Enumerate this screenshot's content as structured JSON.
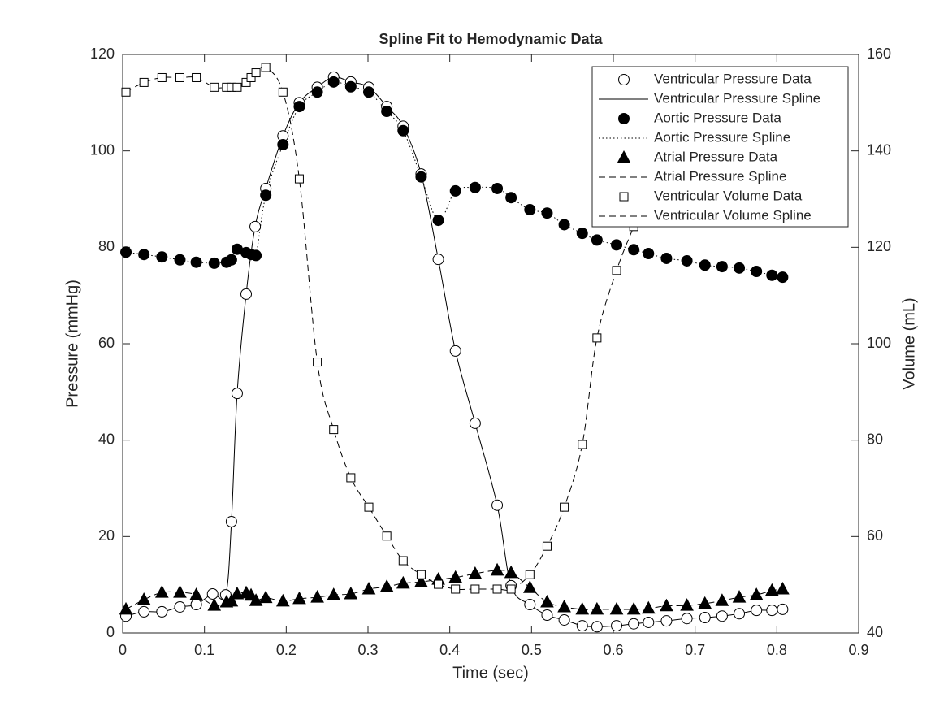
{
  "chart_data": {
    "type": "line",
    "title": "Spline Fit to Hemodynamic Data",
    "x_label": "Time (sec)",
    "y_label": "Pressure (mmHg)",
    "y2_label": "Volume (mL)",
    "xlim": [
      0,
      0.9
    ],
    "xticks": [
      0,
      0.1,
      0.2,
      0.3,
      0.4,
      0.5,
      0.6,
      0.7,
      0.8,
      0.9
    ],
    "ylim": [
      0,
      120
    ],
    "yticks": [
      0,
      20,
      40,
      60,
      80,
      100,
      120
    ],
    "y2lim": [
      40,
      160
    ],
    "y2ticks": [
      40,
      60,
      80,
      100,
      120,
      140,
      160
    ],
    "legend": "northeast",
    "grid": false,
    "series": [
      {
        "name": "Ventricular Pressure Data",
        "marker": "circle-open",
        "line": "none",
        "color": "#000000",
        "axis": "y",
        "x": [
          0.004,
          0.026,
          0.048,
          0.07,
          0.09,
          0.11,
          0.126,
          0.133,
          0.14,
          0.151,
          0.162,
          0.175,
          0.196,
          0.216,
          0.238,
          0.258,
          0.279,
          0.301,
          0.323,
          0.343,
          0.365,
          0.386,
          0.407,
          0.431,
          0.458,
          0.475,
          0.498,
          0.519,
          0.54,
          0.562,
          0.58,
          0.604,
          0.625,
          0.643,
          0.665,
          0.69,
          0.712,
          0.733,
          0.754,
          0.775,
          0.794,
          0.807
        ],
        "values": [
          3.5,
          4.4,
          4.4,
          5.4,
          5.9,
          8.1,
          7.9,
          23.1,
          49.7,
          70.3,
          84.3,
          92.2,
          103.1,
          110,
          113.2,
          115.3,
          114.3,
          113.2,
          109.2,
          105.1,
          95.2,
          77.5,
          58.5,
          43.5,
          26.5,
          9.8,
          5.9,
          3.7,
          2.7,
          1.5,
          1.3,
          1.5,
          1.9,
          2.2,
          2.5,
          3.0,
          3.2,
          3.5,
          4.0,
          4.7,
          4.7,
          4.9
        ]
      },
      {
        "name": "Ventricular Pressure Spline",
        "marker": "none",
        "line": "solid",
        "color": "#000000",
        "axis": "y",
        "x": [
          0.004,
          0.026,
          0.048,
          0.07,
          0.09,
          0.11,
          0.126,
          0.133,
          0.14,
          0.151,
          0.162,
          0.175,
          0.196,
          0.216,
          0.238,
          0.258,
          0.279,
          0.301,
          0.323,
          0.343,
          0.365,
          0.386,
          0.407,
          0.431,
          0.458,
          0.475,
          0.498,
          0.519,
          0.54,
          0.562,
          0.58,
          0.604,
          0.625,
          0.643,
          0.665,
          0.69,
          0.712,
          0.733,
          0.754,
          0.775,
          0.794,
          0.807
        ],
        "values": [
          3.5,
          4.4,
          4.4,
          5.4,
          5.9,
          8.1,
          7.9,
          23.1,
          49.7,
          70.3,
          84.3,
          92.2,
          103.1,
          110,
          113.2,
          115.3,
          114.3,
          113.2,
          109.2,
          105.1,
          95.2,
          77.5,
          58.5,
          43.5,
          26.5,
          9.8,
          5.9,
          3.7,
          2.7,
          1.5,
          1.3,
          1.5,
          1.9,
          2.2,
          2.5,
          3.0,
          3.2,
          3.5,
          4.0,
          4.7,
          4.7,
          4.9
        ]
      },
      {
        "name": "Aortic Pressure Data",
        "marker": "circle-filled",
        "line": "none",
        "color": "#000000",
        "axis": "y",
        "x": [
          0.004,
          0.026,
          0.048,
          0.07,
          0.09,
          0.112,
          0.127,
          0.133,
          0.14,
          0.151,
          0.157,
          0.163,
          0.175,
          0.196,
          0.216,
          0.238,
          0.258,
          0.279,
          0.301,
          0.323,
          0.343,
          0.365,
          0.386,
          0.407,
          0.431,
          0.458,
          0.475,
          0.498,
          0.519,
          0.54,
          0.562,
          0.58,
          0.604,
          0.625,
          0.643,
          0.665,
          0.69,
          0.712,
          0.733,
          0.754,
          0.775,
          0.794,
          0.807
        ],
        "values": [
          79,
          78.5,
          78,
          77.4,
          76.9,
          76.7,
          76.9,
          77.4,
          79.6,
          78.9,
          78.5,
          78.3,
          90.8,
          101.3,
          109.2,
          112.2,
          114.3,
          113.3,
          112.2,
          108.2,
          104.2,
          94.6,
          85.6,
          91.7,
          92.4,
          92.2,
          90.3,
          87.8,
          87.1,
          84.7,
          82.9,
          81.5,
          80.5,
          79.5,
          78.7,
          77.7,
          77.2,
          76.3,
          76.0,
          75.7,
          75.0,
          74.2,
          73.8
        ]
      },
      {
        "name": "Aortic Pressure Spline",
        "marker": "none",
        "line": "dotted",
        "color": "#000000",
        "axis": "y",
        "x": [
          0.004,
          0.026,
          0.048,
          0.07,
          0.09,
          0.112,
          0.127,
          0.133,
          0.14,
          0.151,
          0.157,
          0.163,
          0.175,
          0.196,
          0.216,
          0.238,
          0.258,
          0.279,
          0.301,
          0.323,
          0.343,
          0.365,
          0.386,
          0.407,
          0.431,
          0.458,
          0.475,
          0.498,
          0.519,
          0.54,
          0.562,
          0.58,
          0.604,
          0.625,
          0.643,
          0.665,
          0.69,
          0.712,
          0.733,
          0.754,
          0.775,
          0.794,
          0.807
        ],
        "values": [
          79,
          78.5,
          78,
          77.4,
          76.9,
          76.7,
          76.9,
          77.4,
          79.6,
          78.9,
          78.5,
          78.3,
          90.8,
          101.3,
          109.2,
          112.2,
          114.3,
          113.3,
          112.2,
          108.2,
          104.2,
          94.6,
          85.6,
          91.7,
          92.4,
          92.2,
          90.3,
          87.8,
          87.1,
          84.7,
          82.9,
          81.5,
          80.5,
          79.5,
          78.7,
          77.7,
          77.2,
          76.3,
          76.0,
          75.7,
          75.0,
          74.2,
          73.8
        ]
      },
      {
        "name": "Atrial Pressure Data",
        "marker": "triangle",
        "line": "none",
        "color": "#000000",
        "axis": "y",
        "x": [
          0.004,
          0.026,
          0.048,
          0.07,
          0.09,
          0.112,
          0.127,
          0.133,
          0.14,
          0.151,
          0.157,
          0.163,
          0.175,
          0.196,
          0.216,
          0.238,
          0.258,
          0.279,
          0.301,
          0.323,
          0.343,
          0.365,
          0.386,
          0.407,
          0.431,
          0.458,
          0.475,
          0.498,
          0.519,
          0.54,
          0.562,
          0.58,
          0.604,
          0.625,
          0.643,
          0.665,
          0.69,
          0.712,
          0.733,
          0.754,
          0.775,
          0.794,
          0.807
        ],
        "values": [
          4.9,
          6.9,
          8.4,
          8.4,
          7.9,
          5.7,
          6.4,
          6.6,
          8.1,
          8.3,
          7.8,
          6.7,
          7.3,
          6.6,
          7.1,
          7.4,
          7.9,
          8.1,
          9.1,
          9.6,
          10.3,
          10.6,
          11.1,
          11.5,
          12.3,
          13.0,
          12.5,
          9.4,
          6.4,
          5.4,
          4.9,
          4.9,
          4.9,
          4.9,
          5.1,
          5.6,
          5.7,
          6.1,
          6.7,
          7.4,
          7.9,
          8.8,
          9.1
        ]
      },
      {
        "name": "Atrial Pressure Spline",
        "marker": "none",
        "line": "dashed",
        "color": "#000000",
        "axis": "y",
        "x": [
          0.004,
          0.026,
          0.048,
          0.07,
          0.09,
          0.112,
          0.127,
          0.133,
          0.14,
          0.151,
          0.157,
          0.163,
          0.175,
          0.196,
          0.216,
          0.238,
          0.258,
          0.279,
          0.301,
          0.323,
          0.343,
          0.365,
          0.386,
          0.407,
          0.431,
          0.458,
          0.475,
          0.498,
          0.519,
          0.54,
          0.562,
          0.58,
          0.604,
          0.625,
          0.643,
          0.665,
          0.69,
          0.712,
          0.733,
          0.754,
          0.775,
          0.794,
          0.807
        ],
        "values": [
          4.9,
          6.9,
          8.4,
          8.4,
          7.9,
          5.7,
          6.4,
          6.6,
          8.1,
          8.3,
          7.8,
          6.7,
          7.3,
          6.6,
          7.1,
          7.4,
          7.9,
          8.1,
          9.1,
          9.6,
          10.3,
          10.6,
          11.1,
          11.5,
          12.3,
          13.0,
          12.5,
          9.4,
          6.4,
          5.4,
          4.9,
          4.9,
          4.9,
          4.9,
          5.1,
          5.6,
          5.7,
          6.1,
          6.7,
          7.4,
          7.9,
          8.8,
          9.1
        ]
      },
      {
        "name": "Ventricular Volume Data",
        "marker": "square",
        "line": "none",
        "color": "#000000",
        "axis": "y2",
        "x": [
          0.004,
          0.026,
          0.048,
          0.07,
          0.09,
          0.112,
          0.127,
          0.133,
          0.14,
          0.151,
          0.157,
          0.163,
          0.175,
          0.196,
          0.216,
          0.238,
          0.258,
          0.279,
          0.301,
          0.323,
          0.343,
          0.365,
          0.386,
          0.407,
          0.431,
          0.458,
          0.475,
          0.498,
          0.519,
          0.54,
          0.562,
          0.58,
          0.604,
          0.625
        ],
        "values": [
          152.2,
          154.2,
          155.2,
          155.2,
          155.2,
          153.2,
          153.2,
          153.2,
          153.2,
          154.2,
          155.2,
          156.2,
          157.3,
          152.2,
          134.2,
          96.2,
          82.2,
          72.2,
          66.1,
          60.1,
          55.0,
          52.1,
          50.1,
          49.1,
          49.1,
          49.1,
          49.1,
          52.1,
          58.0,
          66.1,
          79.1,
          101.2,
          115.2,
          124.3
        ]
      },
      {
        "name": "Ventricular Volume Spline",
        "marker": "none",
        "line": "dashed",
        "color": "#000000",
        "axis": "y2",
        "x": [
          0.004,
          0.026,
          0.048,
          0.07,
          0.09,
          0.112,
          0.127,
          0.133,
          0.14,
          0.151,
          0.157,
          0.163,
          0.175,
          0.196,
          0.216,
          0.238,
          0.258,
          0.279,
          0.301,
          0.323,
          0.343,
          0.365,
          0.386,
          0.407,
          0.431,
          0.458,
          0.475,
          0.498,
          0.519,
          0.54,
          0.562,
          0.58,
          0.604,
          0.625
        ],
        "values": [
          152.2,
          154.2,
          155.2,
          155.2,
          155.2,
          153.2,
          153.2,
          153.2,
          153.2,
          154.2,
          155.2,
          156.2,
          157.3,
          152.2,
          134.2,
          96.2,
          82.2,
          72.2,
          66.1,
          60.1,
          55.0,
          52.1,
          50.1,
          49.1,
          49.1,
          49.1,
          49.1,
          52.1,
          58.0,
          66.1,
          79.1,
          101.2,
          115.2,
          124.3
        ]
      }
    ]
  }
}
